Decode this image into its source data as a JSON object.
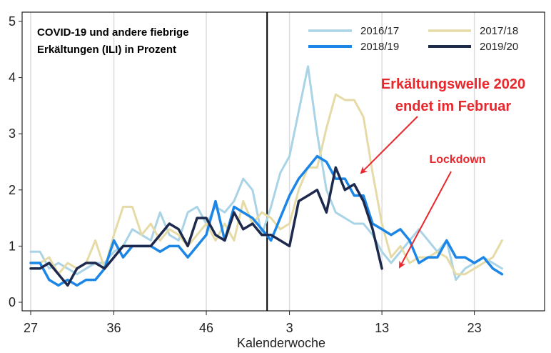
{
  "chart_data": {
    "type": "line",
    "title_lines": [
      "COVID-19 und andere fiebrige",
      "Erkältungen (ILI) in Prozent"
    ],
    "xlabel": "Kalenderwoche",
    "ylabel": "",
    "x_tick_labels": [
      "27",
      "36",
      "46",
      "3",
      "13",
      "23"
    ],
    "y_tick_labels": [
      "0",
      "1",
      "2",
      "3",
      "4",
      "5"
    ],
    "ylim": [
      0,
      5
    ],
    "grid": "vertical",
    "legend_position": "top-right",
    "x_weeks": [
      27,
      28,
      29,
      30,
      31,
      32,
      33,
      34,
      35,
      36,
      37,
      38,
      39,
      40,
      41,
      42,
      43,
      44,
      45,
      46,
      47,
      48,
      49,
      50,
      51,
      52,
      1,
      2,
      3,
      4,
      5,
      6,
      7,
      8,
      9,
      10,
      11,
      12,
      13,
      14,
      15,
      16,
      17,
      18,
      19,
      20,
      21,
      22,
      23,
      24,
      25,
      26
    ],
    "series": [
      {
        "name": "2016/17",
        "color": "#a9d3e6",
        "width": 3,
        "values": [
          0.9,
          0.9,
          0.6,
          0.7,
          0.6,
          0.5,
          0.6,
          0.7,
          0.7,
          0.9,
          1.0,
          1.3,
          1.2,
          1.1,
          1.6,
          1.2,
          1.1,
          1.6,
          1.7,
          1.4,
          1.7,
          1.6,
          1.8,
          2.2,
          2.0,
          1.2,
          1.7,
          2.3,
          2.6,
          3.4,
          4.2,
          3.0,
          2.0,
          1.6,
          1.5,
          1.4,
          1.4,
          1.2,
          0.9,
          0.7,
          0.9,
          1.1,
          1.3,
          1.1,
          0.9,
          1.1,
          0.4,
          0.6,
          0.7,
          0.8,
          0.7,
          0.6
        ]
      },
      {
        "name": "2017/18",
        "color": "#e6dba6",
        "width": 3,
        "values": [
          0.7,
          0.7,
          0.8,
          0.5,
          0.7,
          0.6,
          0.7,
          1.1,
          0.6,
          1.2,
          1.7,
          1.7,
          1.2,
          1.4,
          1.1,
          1.3,
          1.2,
          1.0,
          1.2,
          1.4,
          1.1,
          1.4,
          1.1,
          1.8,
          1.4,
          1.6,
          1.5,
          1.3,
          1.4,
          2.0,
          2.4,
          2.4,
          3.1,
          3.7,
          3.6,
          3.6,
          3.3,
          2.3,
          1.4,
          0.8,
          1.0,
          0.7,
          0.8,
          0.8,
          0.9,
          0.8,
          0.5,
          0.5,
          0.6,
          0.7,
          0.8,
          1.1
        ]
      },
      {
        "name": "2018/19",
        "color": "#1c86e6",
        "width": 3.5,
        "values": [
          0.7,
          0.7,
          0.4,
          0.3,
          0.4,
          0.3,
          0.4,
          0.4,
          0.6,
          1.1,
          0.8,
          1.0,
          1.0,
          1.0,
          0.9,
          1.0,
          1.0,
          0.8,
          1.0,
          1.2,
          1.8,
          1.1,
          1.7,
          1.6,
          1.5,
          1.3,
          1.1,
          1.5,
          1.9,
          2.2,
          2.4,
          2.6,
          2.5,
          2.2,
          2.2,
          1.9,
          1.9,
          1.4,
          1.3,
          1.2,
          1.3,
          1.1,
          0.7,
          0.8,
          0.8,
          1.1,
          0.8,
          0.8,
          0.7,
          0.8,
          0.6,
          0.5
        ]
      },
      {
        "name": "2019/20",
        "color": "#1d2a4d",
        "width": 3.5,
        "values": [
          0.6,
          0.6,
          0.7,
          0.5,
          0.3,
          0.6,
          0.7,
          0.7,
          0.6,
          0.8,
          1.0,
          1.0,
          1.0,
          1.0,
          1.2,
          1.4,
          1.3,
          1.0,
          1.5,
          1.5,
          1.2,
          1.1,
          1.6,
          1.3,
          1.4,
          1.2,
          1.2,
          1.1,
          1.0,
          1.8,
          1.9,
          2.0,
          1.6,
          2.4,
          2.0,
          2.1,
          1.8,
          1.3,
          0.6
        ]
      }
    ],
    "annotations": [
      {
        "lines": [
          "Erkältungswelle 2020",
          "endet im Februar"
        ],
        "color": "#e8272c"
      },
      {
        "lines": [
          "Lockdown"
        ],
        "color": "#e8272c"
      }
    ]
  }
}
